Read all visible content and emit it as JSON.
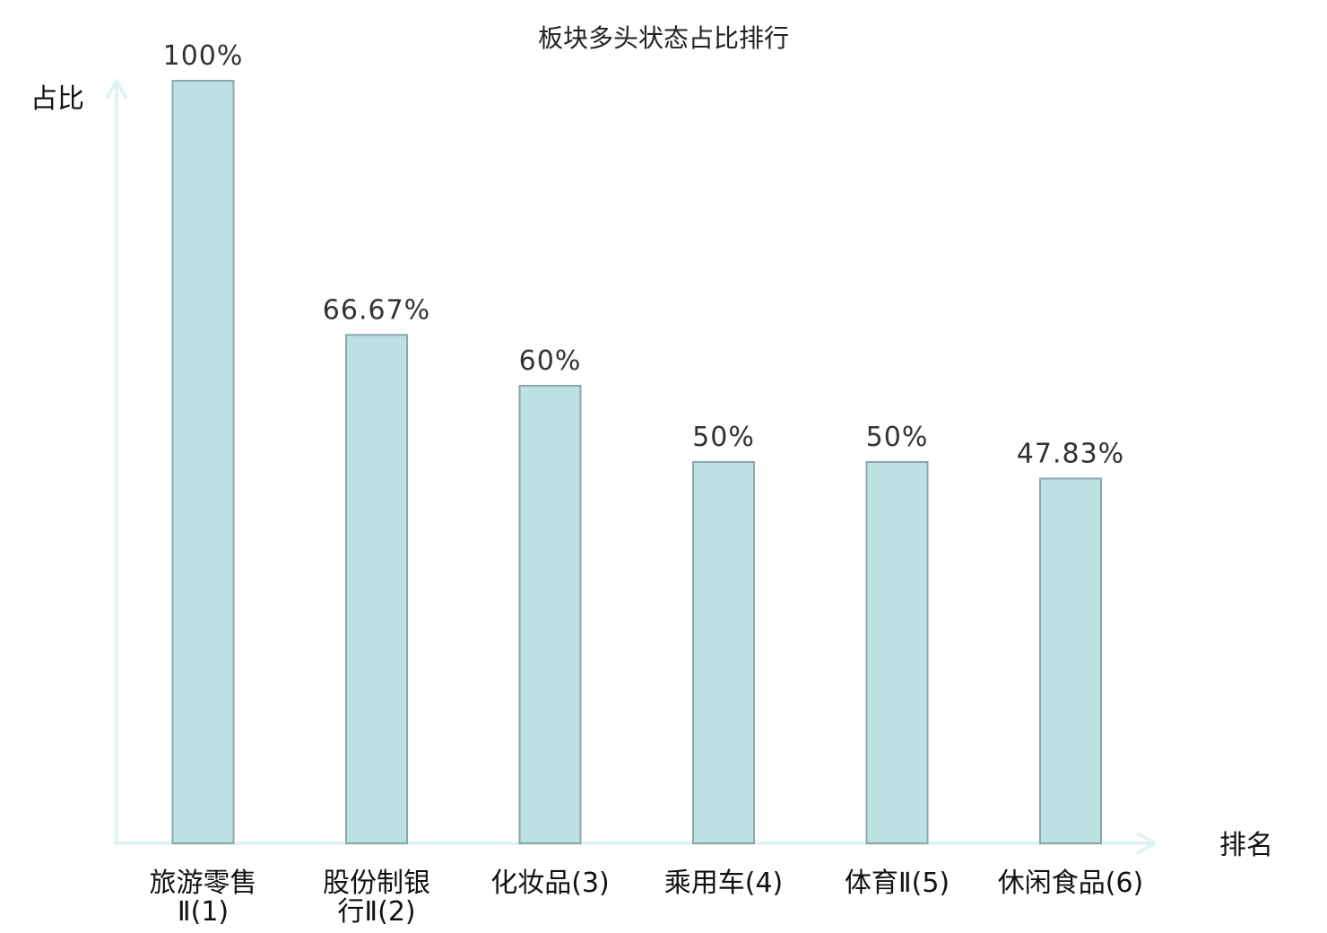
{
  "chart_data": {
    "type": "bar",
    "title": "板块多头状态占比排行",
    "xlabel": "排名",
    "ylabel": "占比",
    "ylim": [
      0,
      100
    ],
    "categories": [
      [
        "旅游零售",
        "Ⅱ(1)"
      ],
      [
        "股份制银",
        "行Ⅱ(2)"
      ],
      [
        "化妆品(3)"
      ],
      [
        "乘用车(4)"
      ],
      [
        "体育Ⅱ(5)"
      ],
      [
        "休闲食品(6)"
      ]
    ],
    "values": [
      100,
      66.67,
      60,
      50,
      50,
      47.83
    ],
    "value_labels": [
      "100%",
      "66.67%",
      "60%",
      "50%",
      "50%",
      "47.83%"
    ],
    "highlight_index": 5,
    "grid": false,
    "legend": "none"
  },
  "colors": {
    "bar_fill": "#bde0e2",
    "bar_stroke": "#8aa8aa",
    "axis": "#e0f2f1",
    "highlight_text": "#e02020",
    "text": "#111111"
  }
}
